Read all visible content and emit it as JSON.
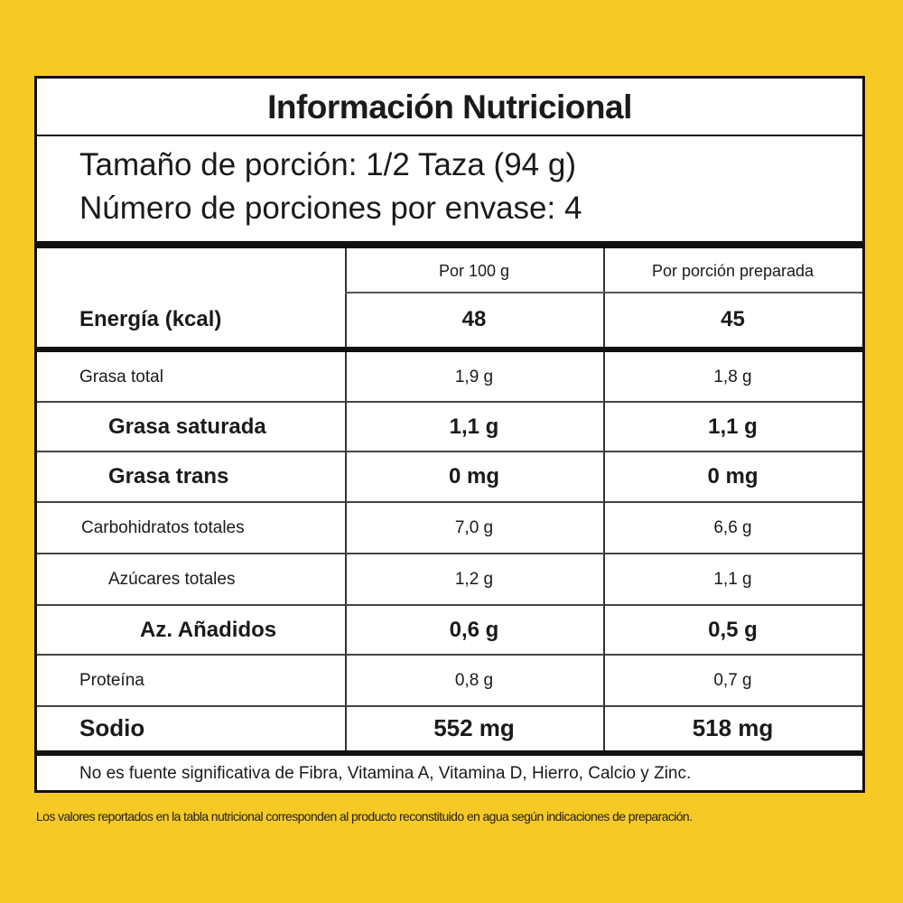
{
  "header": {
    "title": "Información Nutricional",
    "serving_size": "Tamaño de porción: 1/2 Taza (94 g)",
    "servings": "Número de porciones por envase: 4"
  },
  "table": {
    "columns": [
      "Por 100 g",
      "Por porción preparada"
    ],
    "rows": [
      [
        "Energía (kcal)",
        "48",
        "45"
      ],
      [
        "Grasa total",
        "1,9 g",
        "1,8 g"
      ],
      [
        "Grasa saturada",
        "1,1 g",
        "1,1 g"
      ],
      [
        "Grasa trans",
        "0 mg",
        "0 mg"
      ],
      [
        "Carbohidratos totales",
        "7,0 g",
        "6,6 g"
      ],
      [
        "Azúcares totales",
        "1,2 g",
        "1,1 g"
      ],
      [
        "Az. Añadidos",
        "0,6 g",
        "0,5 g"
      ],
      [
        "Proteína",
        "0,8 g",
        "0,7 g"
      ],
      [
        "Sodio",
        "552 mg",
        "518 mg"
      ]
    ]
  },
  "footnote": "No es fuente significativa de Fibra, Vitamina A, Vitamina D, Hierro, Calcio y Zinc.",
  "disclaimer": "Los valores reportados en la tabla nutricional corresponden al producto reconstituido en agua según indicaciones de preparación."
}
